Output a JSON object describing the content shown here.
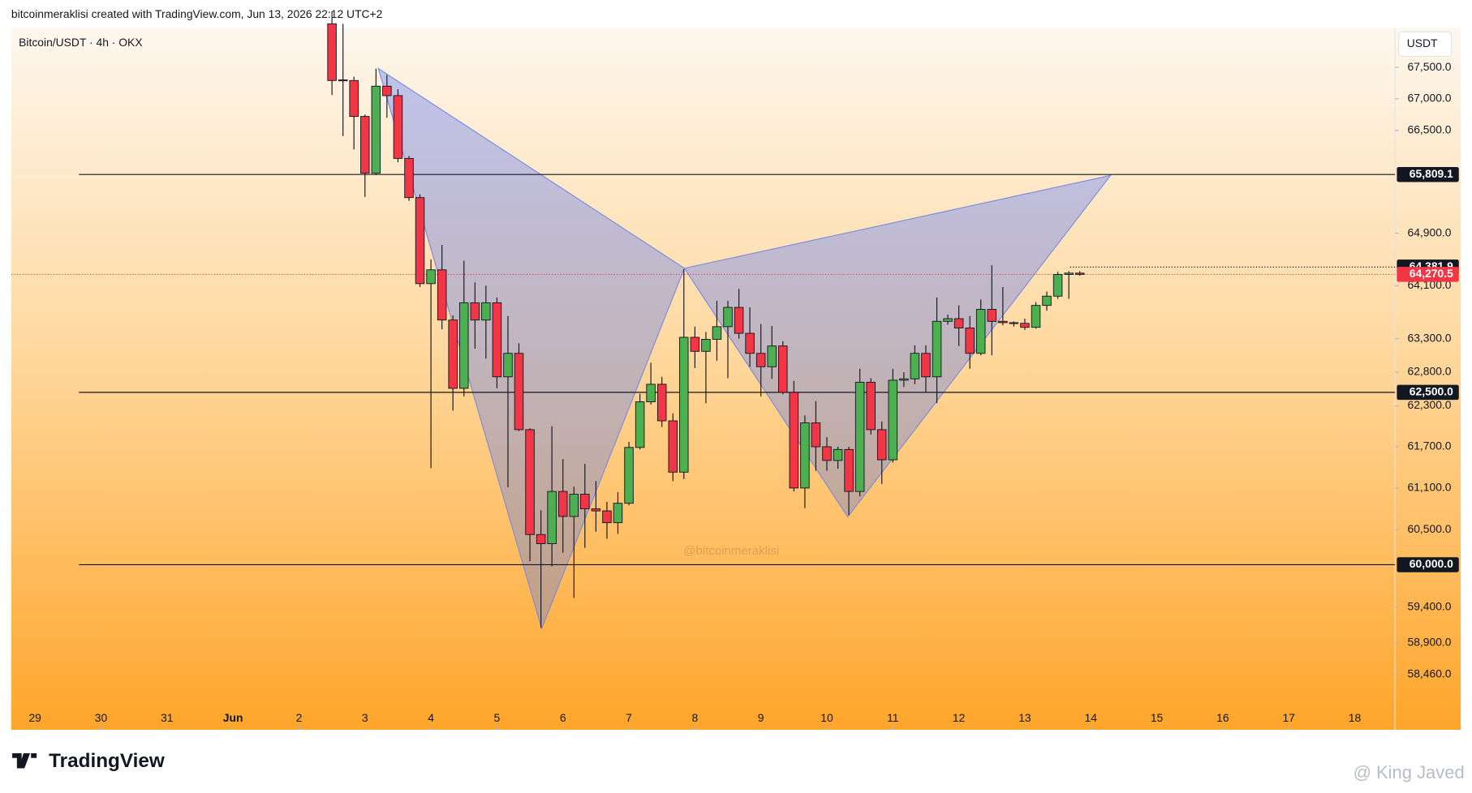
{
  "header": {
    "attribution": "bitcoinmeraklisi created with TradingView.com, Jun 13, 2026 22:12 UTC+2"
  },
  "chart_data": {
    "type": "candlestick",
    "title": "Bitcoin/USDT · 4h · OKX",
    "currency": "USDT",
    "watermark": "@bitcoinmeraklisi",
    "up_color": "#4caf50",
    "down_color": "#f23645",
    "log_scale": true,
    "xlim": [
      -0.36,
      20.61
    ],
    "ylim": [
      57700,
      68130
    ],
    "xticks": [
      {
        "value": 0,
        "label": "29"
      },
      {
        "value": 1,
        "label": "30"
      },
      {
        "value": 2,
        "label": "31"
      },
      {
        "value": 3,
        "label": "Jun"
      },
      {
        "value": 4,
        "label": "2"
      },
      {
        "value": 5,
        "label": "3"
      },
      {
        "value": 6,
        "label": "4"
      },
      {
        "value": 7,
        "label": "5"
      },
      {
        "value": 8,
        "label": "6"
      },
      {
        "value": 9,
        "label": "7"
      },
      {
        "value": 10,
        "label": "8"
      },
      {
        "value": 11,
        "label": "9"
      },
      {
        "value": 12,
        "label": "10"
      },
      {
        "value": 13,
        "label": "11"
      },
      {
        "value": 14,
        "label": "12"
      },
      {
        "value": 15,
        "label": "13"
      },
      {
        "value": 16,
        "label": "14"
      },
      {
        "value": 17,
        "label": "15"
      },
      {
        "value": 18,
        "label": "16"
      },
      {
        "value": 19,
        "label": "17"
      },
      {
        "value": 20,
        "label": "18"
      }
    ],
    "yticks": [
      {
        "value": 67500,
        "label": "67,500.0"
      },
      {
        "value": 67000,
        "label": "67,000.0"
      },
      {
        "value": 66500,
        "label": "66,500.0"
      },
      {
        "value": 64900,
        "label": "64,900.0"
      },
      {
        "value": 64100,
        "label": "64,100.0"
      },
      {
        "value": 63300,
        "label": "63,300.0"
      },
      {
        "value": 62800,
        "label": "62,800.0"
      },
      {
        "value": 62300,
        "label": "62,300.0"
      },
      {
        "value": 61700,
        "label": "61,700.0"
      },
      {
        "value": 61100,
        "label": "61,100.0"
      },
      {
        "value": 60500,
        "label": "60,500.0"
      },
      {
        "value": 59400,
        "label": "59,400.0"
      },
      {
        "value": 58900,
        "label": "58,900.0"
      },
      {
        "value": 58460,
        "label": "58,460.0"
      }
    ],
    "x": [
      4.5,
      4.667,
      4.833,
      5,
      5.167,
      5.333,
      5.5,
      5.667,
      5.833,
      6,
      6.167,
      6.333,
      6.5,
      6.667,
      6.833,
      7,
      7.167,
      7.333,
      7.5,
      7.667,
      7.833,
      8,
      8.167,
      8.333,
      8.5,
      8.667,
      8.833,
      9,
      9.167,
      9.333,
      9.5,
      9.667,
      9.833,
      10,
      10.167,
      10.333,
      10.5,
      10.667,
      10.833,
      11,
      11.167,
      11.333,
      11.5,
      11.667,
      11.833,
      12,
      12.167,
      12.333,
      12.5,
      12.667,
      12.833,
      13,
      13.167,
      13.333,
      13.5,
      13.667,
      13.833,
      14,
      14.167,
      14.333,
      14.5,
      14.667,
      14.833,
      15,
      15.167,
      15.333,
      15.5,
      15.667,
      15.833
    ],
    "open": [
      68200,
      67300,
      67290,
      66720,
      65830,
      67200,
      67050,
      66060,
      65450,
      64130,
      64340,
      63580,
      62560,
      63840,
      63580,
      63840,
      62730,
      63080,
      61950,
      60430,
      60300,
      61050,
      60690,
      61010,
      60800,
      60770,
      60600,
      60880,
      61690,
      62360,
      62620,
      62080,
      61330,
      63320,
      63110,
      63290,
      63480,
      63770,
      63380,
      63080,
      62880,
      63190,
      62500,
      61100,
      62050,
      61700,
      61500,
      61660,
      61050,
      62650,
      61950,
      61510,
      62680,
      62700,
      63080,
      62730,
      63560,
      63600,
      63460,
      63080,
      63740,
      63560,
      63540,
      63530,
      63470,
      63800,
      63940,
      64270,
      64290
    ],
    "high": [
      68400,
      68200,
      67350,
      66750,
      67480,
      67380,
      67150,
      66100,
      65500,
      64500,
      64720,
      63650,
      64480,
      64150,
      64100,
      63920,
      63640,
      63230,
      61970,
      60780,
      62000,
      61520,
      61120,
      61450,
      61200,
      60900,
      61040,
      61770,
      62480,
      62940,
      62730,
      62190,
      64350,
      63480,
      63400,
      63870,
      63870,
      64050,
      63770,
      63520,
      63490,
      63260,
      62670,
      62160,
      62370,
      61840,
      61700,
      61700,
      62850,
      62710,
      62070,
      62850,
      62800,
      63200,
      63200,
      63920,
      63660,
      63800,
      63640,
      63890,
      64410,
      64080,
      63560,
      63600,
      63850,
      64010,
      64310,
      64320,
      64320
    ],
    "low": [
      67060,
      66410,
      66200,
      65460,
      65800,
      66700,
      66000,
      65400,
      64080,
      61390,
      63440,
      62230,
      62440,
      63150,
      63000,
      62560,
      61110,
      61930,
      60050,
      59110,
      59980,
      60170,
      59530,
      60240,
      60470,
      60370,
      60440,
      60850,
      61660,
      62320,
      61990,
      61200,
      61230,
      62860,
      62340,
      62970,
      62710,
      63300,
      62880,
      62440,
      62700,
      62470,
      61050,
      60810,
      61350,
      61350,
      61380,
      60710,
      60980,
      61880,
      61160,
      61470,
      62580,
      62620,
      62500,
      62340,
      63510,
      63190,
      62850,
      63050,
      63050,
      63500,
      63480,
      63430,
      63450,
      63720,
      63900,
      63900,
      64250
    ],
    "close": [
      67290,
      67290,
      66720,
      65830,
      67200,
      67050,
      66060,
      65450,
      64130,
      64340,
      63580,
      62560,
      63840,
      63580,
      63840,
      62730,
      63080,
      61950,
      60430,
      60300,
      61050,
      60690,
      61010,
      60800,
      60770,
      60600,
      60880,
      61690,
      62360,
      62620,
      62080,
      61330,
      63320,
      63110,
      63290,
      63480,
      63770,
      63380,
      63080,
      62880,
      63190,
      62500,
      61100,
      62050,
      61700,
      61500,
      61660,
      61050,
      62650,
      61950,
      61510,
      62680,
      62700,
      63080,
      62730,
      63560,
      63600,
      63460,
      63080,
      63740,
      63560,
      63540,
      63530,
      63470,
      63800,
      63940,
      64270,
      64290,
      64270.5
    ],
    "price_lines": [
      {
        "value": 65809.1,
        "label": "65,809.1"
      },
      {
        "value": 62500,
        "label": "62,500.0"
      },
      {
        "value": 60000,
        "label": "60,000.0"
      }
    ],
    "high_marker": {
      "value": 64381.9,
      "label": "64,381.9"
    },
    "last_price": {
      "value": 64270.5,
      "label": "64,270.5"
    }
  },
  "footer": {
    "logo": "TradingView",
    "credit": "@ King Javed"
  }
}
